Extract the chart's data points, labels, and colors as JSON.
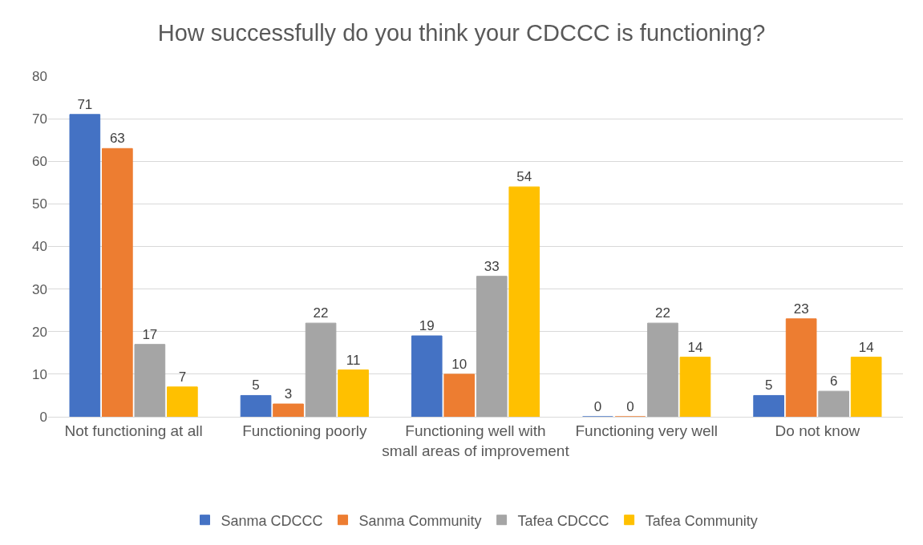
{
  "chart_data": {
    "type": "bar",
    "title": "How successfully do you think your CDCCC is functioning?",
    "categories": [
      "Not functioning at all",
      "Functioning poorly",
      "Functioning well with small areas of improvement",
      "Functioning very well",
      "Do not know"
    ],
    "series": [
      {
        "name": "Sanma CDCCC",
        "color": "#4472c4",
        "values": [
          71,
          5,
          19,
          0,
          5
        ]
      },
      {
        "name": "Sanma Community",
        "color": "#ed7d31",
        "values": [
          63,
          3,
          10,
          0,
          23
        ]
      },
      {
        "name": "Tafea CDCCC",
        "color": "#a5a5a5",
        "values": [
          17,
          22,
          33,
          22,
          6
        ]
      },
      {
        "name": "Tafea Community",
        "color": "#ffc000",
        "values": [
          7,
          11,
          54,
          14,
          14
        ]
      }
    ],
    "ylim": [
      0,
      80
    ],
    "yticks": [
      0,
      10,
      20,
      30,
      40,
      50,
      60,
      70,
      80
    ],
    "grid": "y",
    "legend": "bottom",
    "data_labels": true
  }
}
